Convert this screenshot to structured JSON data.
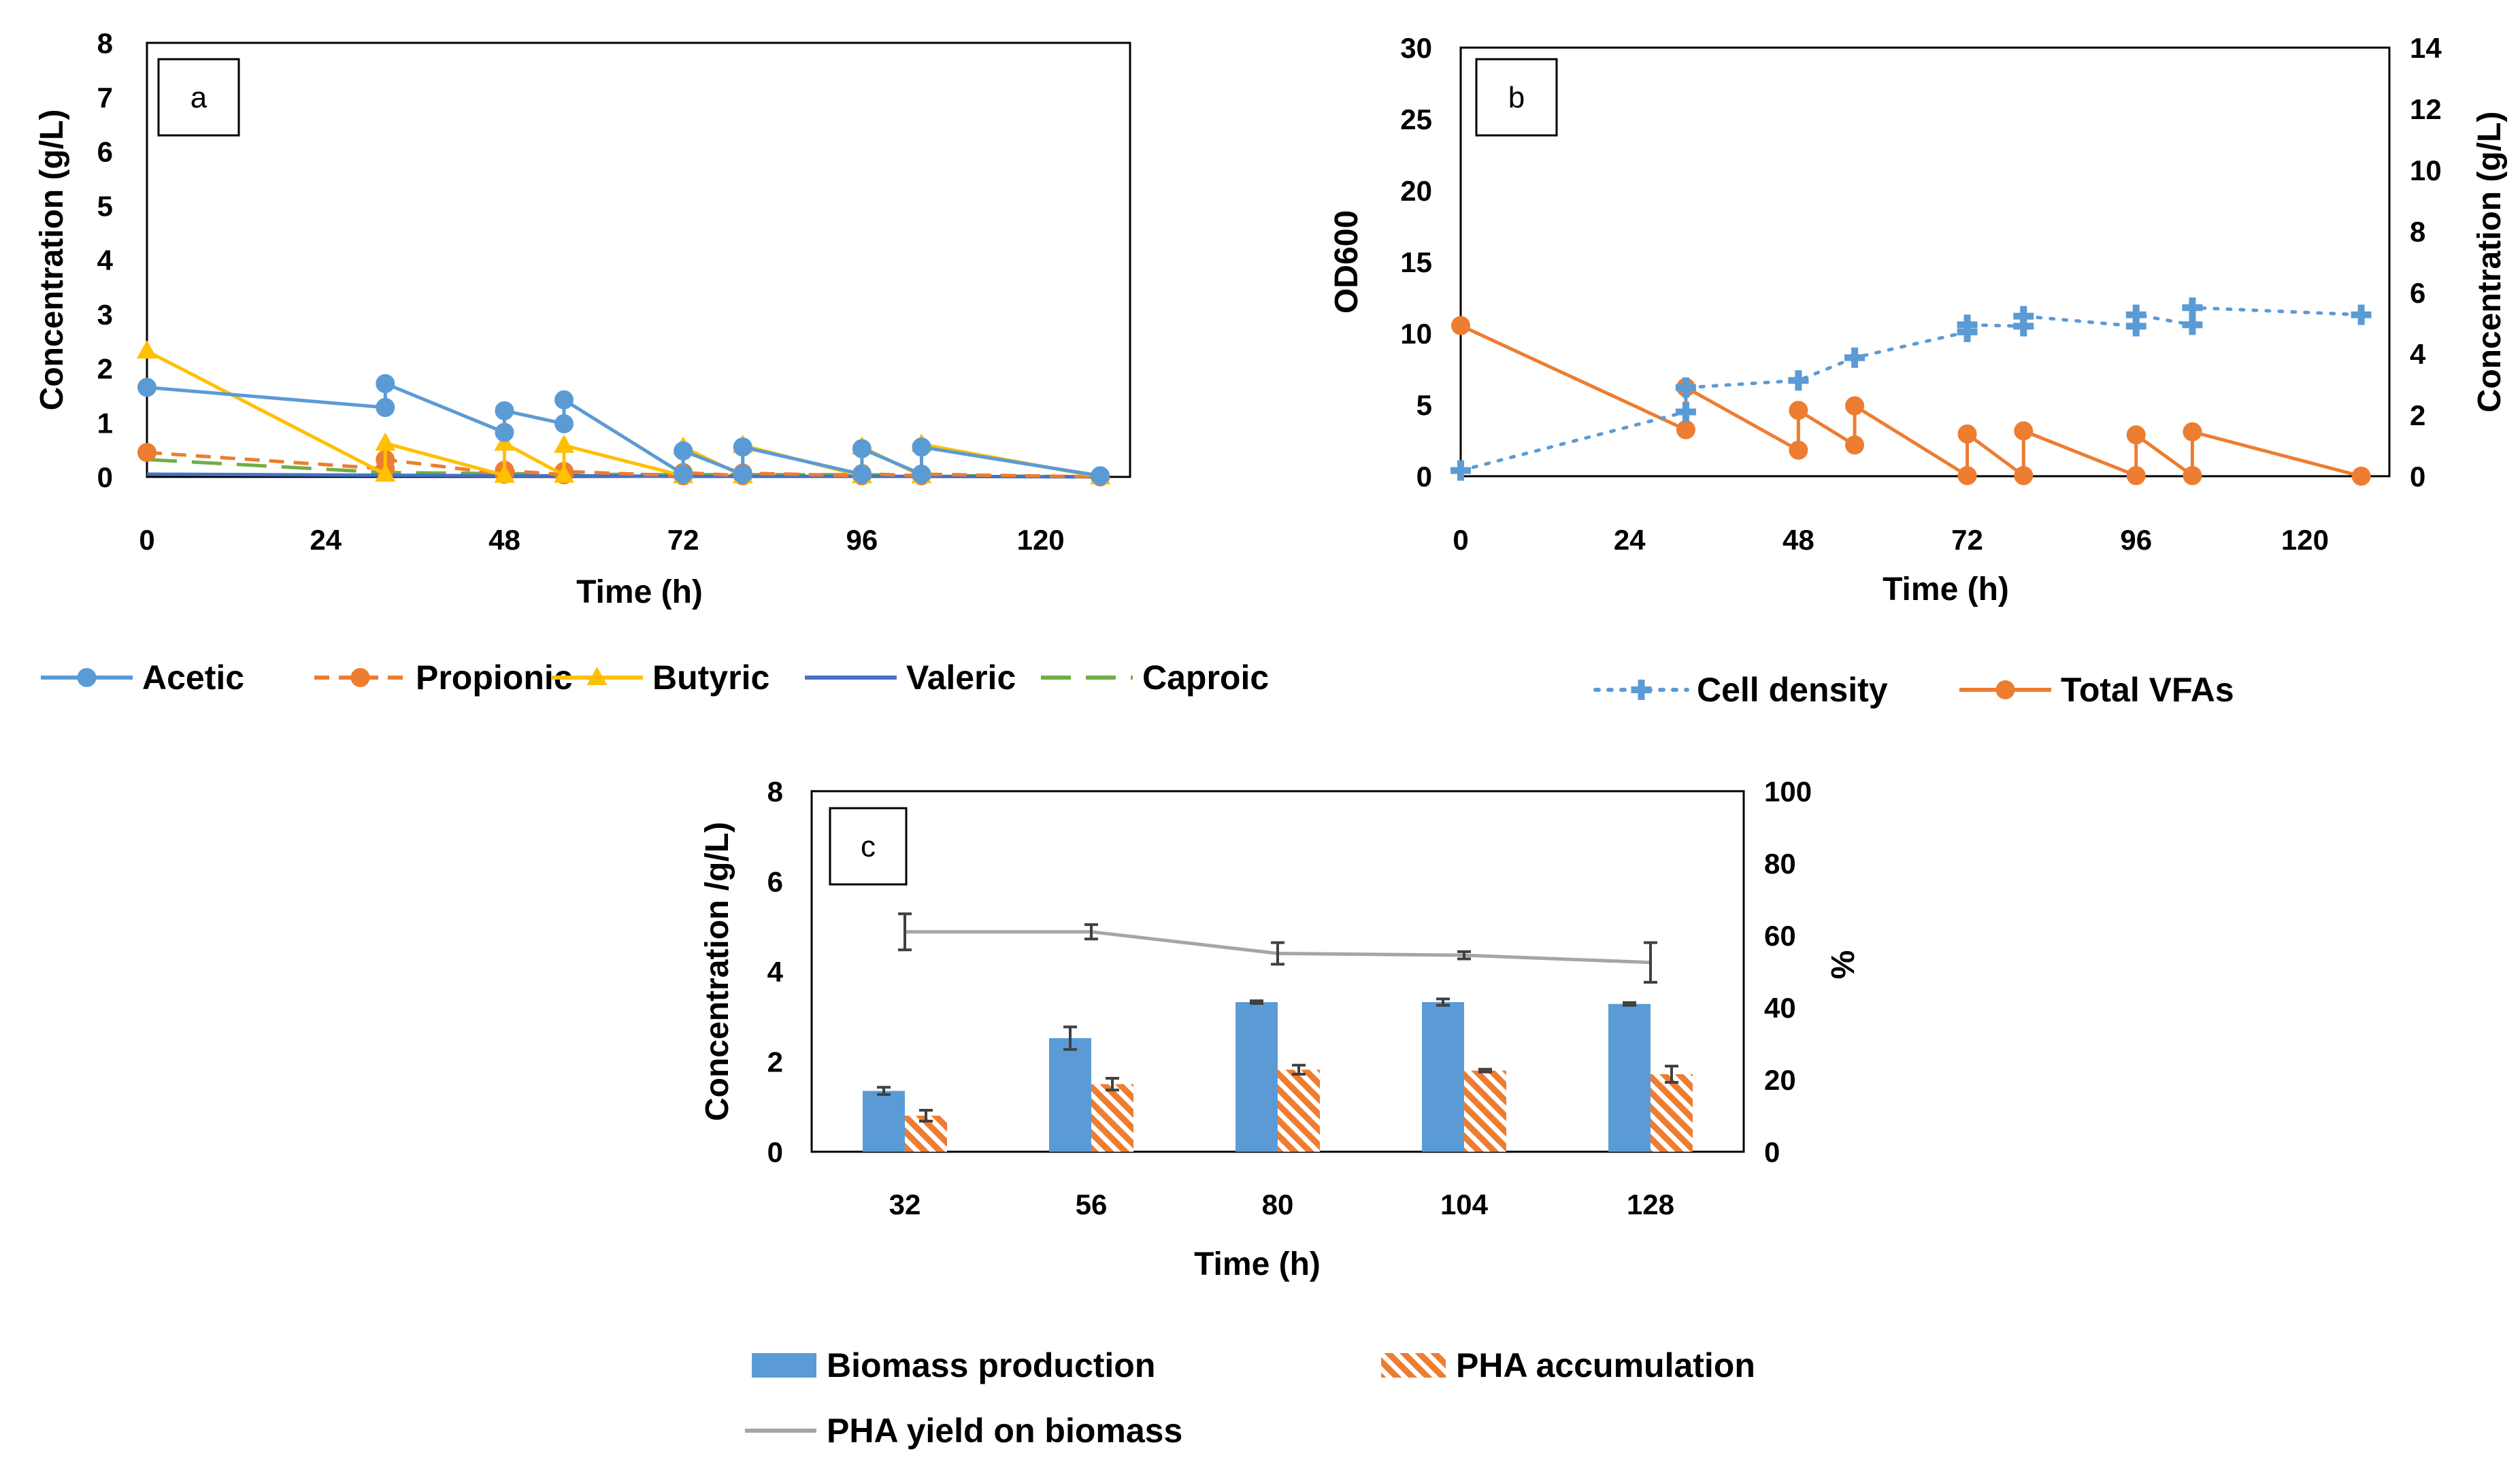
{
  "colors": {
    "acetic": "#5B9BD5",
    "propionic": "#ED7D31",
    "butyric": "#FFC000",
    "valeric": "#4472C4",
    "caproic": "#70AD47",
    "cell_density": "#5B9BD5",
    "total_vfas": "#ED7D31",
    "biomass": "#5B9BD5",
    "pha": "#ED7D31",
    "yield": "#A5A5A5"
  },
  "chart_data": [
    {
      "id": "a",
      "type": "line",
      "panel_label": "a",
      "xlabel": "Time (h)",
      "ylabel": "Concentration (g/L)",
      "xlim": [
        0,
        132
      ],
      "ylim": [
        0,
        8
      ],
      "xticks": [
        0,
        24,
        48,
        72,
        96,
        120
      ],
      "yticks": [
        0,
        1,
        2,
        3,
        4,
        5,
        6,
        7,
        8
      ],
      "legend_position": "bottom",
      "series": [
        {
          "name": "Acetic",
          "key": "acetic",
          "style": "solid",
          "marker": "circle",
          "x": [
            0,
            32,
            32,
            48,
            48,
            56,
            56,
            72,
            72,
            80,
            80,
            96,
            96,
            104,
            104,
            128
          ],
          "y": [
            1.65,
            1.28,
            1.72,
            0.82,
            1.22,
            0.98,
            1.42,
            0.05,
            0.48,
            0.05,
            0.55,
            0.05,
            0.52,
            0.05,
            0.55,
            0.02
          ]
        },
        {
          "name": "Propionic",
          "key": "propionic",
          "style": "dashed",
          "marker": "circle",
          "x": [
            0,
            32,
            32,
            48,
            48,
            56,
            56,
            72,
            72,
            80,
            80,
            96,
            96,
            104,
            104,
            128
          ],
          "y": [
            0.45,
            0.15,
            0.32,
            0.05,
            0.12,
            0.04,
            0.1,
            0.02,
            0.08,
            0.02,
            0.07,
            0.02,
            0.06,
            0.02,
            0.05,
            0.0
          ]
        },
        {
          "name": "Butyric",
          "key": "butyric",
          "style": "solid",
          "marker": "triangle",
          "x": [
            0,
            32,
            32,
            48,
            48,
            56,
            56,
            72,
            72,
            80,
            80,
            96,
            96,
            104,
            104,
            128
          ],
          "y": [
            2.32,
            0.05,
            0.62,
            0.03,
            0.62,
            0.03,
            0.58,
            0.02,
            0.55,
            0.02,
            0.58,
            0.02,
            0.55,
            0.02,
            0.6,
            0.0
          ]
        },
        {
          "name": "Valeric",
          "key": "valeric",
          "style": "solid",
          "marker": "none",
          "x": [
            0,
            32,
            48,
            56,
            72,
            80,
            96,
            104,
            128
          ],
          "y": [
            0.05,
            0.03,
            0.02,
            0.02,
            0.01,
            0.01,
            0.01,
            0.01,
            0.0
          ]
        },
        {
          "name": "Caproic",
          "key": "caproic",
          "style": "longdash",
          "marker": "none",
          "x": [
            0,
            32,
            48,
            56,
            72,
            80,
            96,
            104,
            128
          ],
          "y": [
            0.32,
            0.08,
            0.06,
            0.05,
            0.04,
            0.04,
            0.04,
            0.03,
            0.0
          ]
        }
      ]
    },
    {
      "id": "b",
      "type": "line",
      "panel_label": "b",
      "xlabel": "Time (h)",
      "ylabel": "OD600",
      "ylabel_right": "Concentration (g/L)",
      "xlim": [
        0,
        132
      ],
      "ylim": [
        0,
        30
      ],
      "ylim_right": [
        0,
        14
      ],
      "xticks": [
        0,
        24,
        48,
        72,
        96,
        120
      ],
      "yticks": [
        0,
        5,
        10,
        15,
        20,
        25,
        30
      ],
      "yticks_right": [
        0,
        2,
        4,
        6,
        8,
        10,
        12,
        14
      ],
      "legend_position": "bottom",
      "series": [
        {
          "name": "Cell density",
          "key": "cell_density",
          "axis": "left",
          "style": "dotted",
          "marker": "plus",
          "x": [
            0,
            32,
            32,
            48,
            56,
            72,
            72,
            80,
            80,
            96,
            96,
            104,
            104,
            128
          ],
          "y": [
            0.4,
            4.5,
            6.2,
            6.7,
            8.3,
            10.1,
            10.6,
            10.5,
            11.2,
            10.5,
            11.3,
            10.6,
            11.8,
            11.3
          ]
        },
        {
          "name": "Total VFAs",
          "key": "total_vfas",
          "axis": "right",
          "style": "solid",
          "marker": "circle",
          "x": [
            0,
            32,
            32,
            48,
            48,
            56,
            56,
            72,
            72,
            80,
            80,
            96,
            96,
            104,
            104,
            128
          ],
          "y": [
            4.92,
            1.52,
            2.9,
            0.85,
            2.15,
            1.02,
            2.3,
            0.02,
            1.38,
            0.02,
            1.48,
            0.02,
            1.35,
            0.02,
            1.45,
            0.0
          ]
        }
      ]
    },
    {
      "id": "c",
      "type": "bar",
      "panel_label": "c",
      "xlabel": "Time (h)",
      "ylabel": "Concentration /g/L)",
      "ylabel_right": "%",
      "categories": [
        "32",
        "56",
        "80",
        "104",
        "128"
      ],
      "ylim": [
        0,
        8
      ],
      "ylim_right": [
        0,
        100
      ],
      "yticks": [
        0,
        2,
        4,
        6,
        8
      ],
      "yticks_right": [
        0,
        20,
        40,
        60,
        80,
        100
      ],
      "legend_position": "bottom",
      "series": [
        {
          "name": "Biomass production",
          "key": "biomass",
          "type": "bar",
          "axis": "left",
          "values": [
            1.35,
            2.52,
            3.32,
            3.32,
            3.28
          ],
          "errors": [
            0.08,
            0.25,
            0.03,
            0.07,
            0.03
          ]
        },
        {
          "name": "PHA accumulation",
          "key": "pha",
          "type": "bar",
          "pattern": "hatched",
          "axis": "left",
          "values": [
            0.8,
            1.5,
            1.82,
            1.8,
            1.72
          ],
          "errors": [
            0.12,
            0.13,
            0.1,
            0.03,
            0.18
          ]
        },
        {
          "name": "PHA yield on biomass",
          "key": "yield",
          "type": "line",
          "axis": "right",
          "values": [
            61,
            61,
            55,
            54.5,
            52.5
          ],
          "errors": [
            5,
            2,
            3,
            1,
            5.5
          ]
        }
      ]
    }
  ]
}
